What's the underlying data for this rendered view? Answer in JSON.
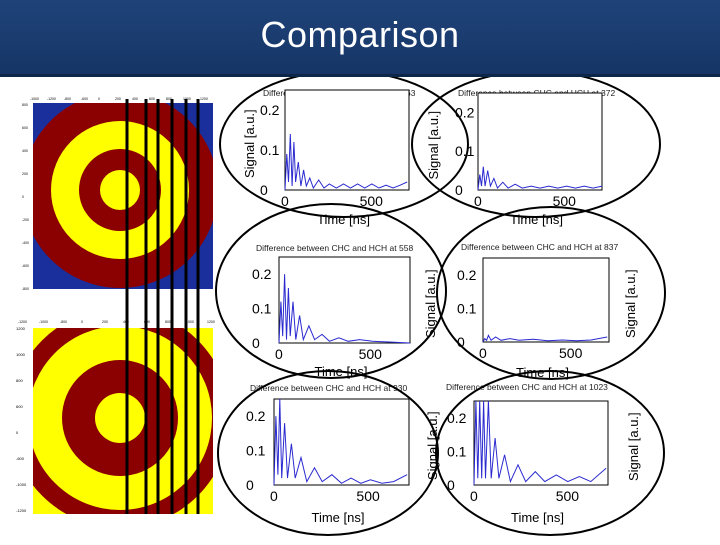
{
  "slide": {
    "title": "Comparison"
  },
  "colors": {
    "header": "#1f4379",
    "ring_dark": "#8b0000",
    "ring_light": "#ffff00",
    "bg_blue": "#1a2f9c",
    "signal": "#2a2ad0"
  },
  "left_images": [
    {
      "name": "ring-image-top",
      "y_ticks": [
        "800",
        "600",
        "400",
        "200",
        "0",
        "-200",
        "-400",
        "-600",
        "-800"
      ],
      "x_ticks": [
        "-1000",
        "-1200",
        "-800",
        "-600",
        "0",
        "200",
        "400",
        "600",
        "800",
        "1000",
        "1200"
      ]
    },
    {
      "name": "ring-image-bottom",
      "y_ticks": [
        "1200",
        "1000",
        "800",
        "600",
        "0",
        "-600",
        "-1000",
        "-1200"
      ],
      "x_ticks": []
    }
  ],
  "plots": [
    {
      "title": "Difference between CHC and HCH at 63",
      "ylabel": "Signal [a.u.]",
      "xlabel": "Time [ns]",
      "yticks": [
        "0.2",
        "0.1",
        "0"
      ],
      "xticks": [
        "0",
        "500"
      ]
    },
    {
      "title": "Difference between CHC and HCH at 372",
      "ylabel": "Signal [a.u.]",
      "xlabel": "Time [ns]",
      "yticks": [
        "0.2",
        "0.1",
        "0"
      ],
      "xticks": [
        "0",
        "500"
      ]
    },
    {
      "title": "Difference between CHC and HCH at 558",
      "ylabel": "Signal [a.u.]",
      "xlabel": "Time [ns]",
      "yticks": [
        "0.2",
        "0.1",
        "0"
      ],
      "xticks": [
        "0",
        "500"
      ]
    },
    {
      "title": "Difference between CHC and HCH at 837",
      "ylabel": "Signal [a.u.]",
      "xlabel": "Time [ns]",
      "yticks": [
        "0.2",
        "0.1",
        "0"
      ],
      "xticks": [
        "0",
        "500"
      ]
    },
    {
      "title": "Difference between CHC and HCH at 930",
      "ylabel": "Signal [a.u.]",
      "xlabel": "Time [ns]",
      "yticks": [
        "0.2",
        "0.1",
        "0"
      ],
      "xticks": [
        "0",
        "500"
      ]
    },
    {
      "title": "Difference between CHC and HCH at 1023",
      "ylabel": "Signal [a.u.]",
      "xlabel": "Time [ns]",
      "yticks": [
        "0.2",
        "0.1",
        "0"
      ],
      "xticks": [
        "0",
        "500"
      ]
    }
  ]
}
